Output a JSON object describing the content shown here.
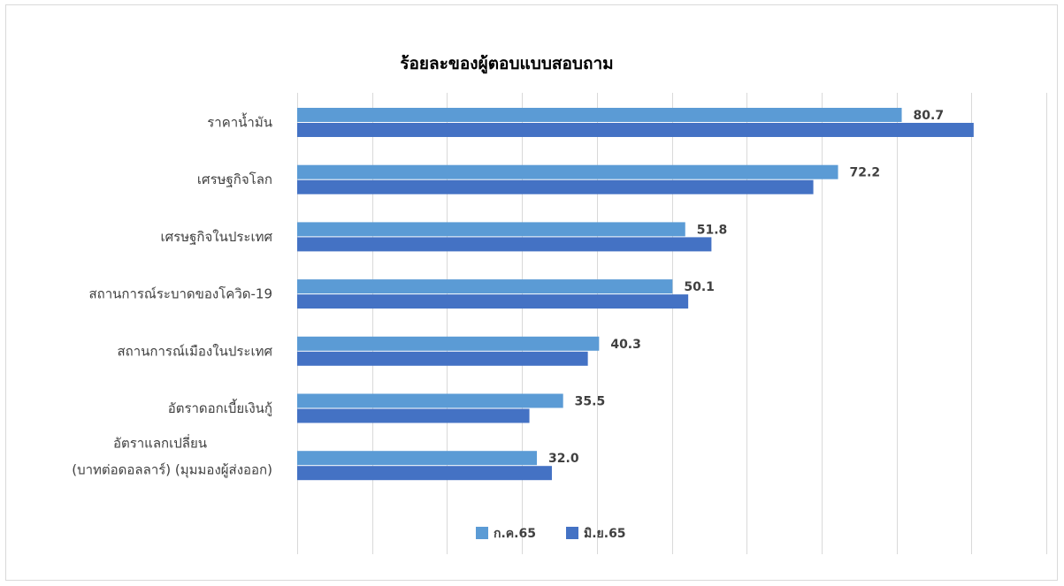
{
  "chart_data": {
    "type": "bar",
    "orientation": "horizontal",
    "title": "ร้อยละของผู้ตอบแบบสอบถาม",
    "categories": [
      [
        "ราคาน้ำมัน"
      ],
      [
        "เศรษฐกิจโลก"
      ],
      [
        "เศรษฐกิจในประเทศ"
      ],
      [
        "สถานการณ์ระบาดของโควิด-19"
      ],
      [
        "สถานการณ์เมืองในประเทศ"
      ],
      [
        "อัตราดอกเบี้ยเงินกู้"
      ],
      [
        "อัตราแลกเปลี่ยน",
        "(บาทต่อดอลลาร์) (มุมมองผู้ส่งออก)"
      ]
    ],
    "series": [
      {
        "name": "ก.ค.65",
        "color": "#5b9bd5",
        "values": [
          80.7,
          72.2,
          51.8,
          50.1,
          40.3,
          35.5,
          32.0
        ],
        "labels": [
          "80.7",
          "72.2",
          "51.8",
          "50.1",
          "40.3",
          "35.5",
          "32.0"
        ]
      },
      {
        "name": "มิ.ย.65",
        "color": "#4472c4",
        "values": [
          90.3,
          68.9,
          55.3,
          52.2,
          38.8,
          31.0,
          34.0
        ]
      }
    ],
    "xlim": [
      0,
      100
    ],
    "x_grid_step": 10,
    "grid": true,
    "legend_position": "bottom",
    "show_value_labels_for_series": [
      0
    ]
  }
}
